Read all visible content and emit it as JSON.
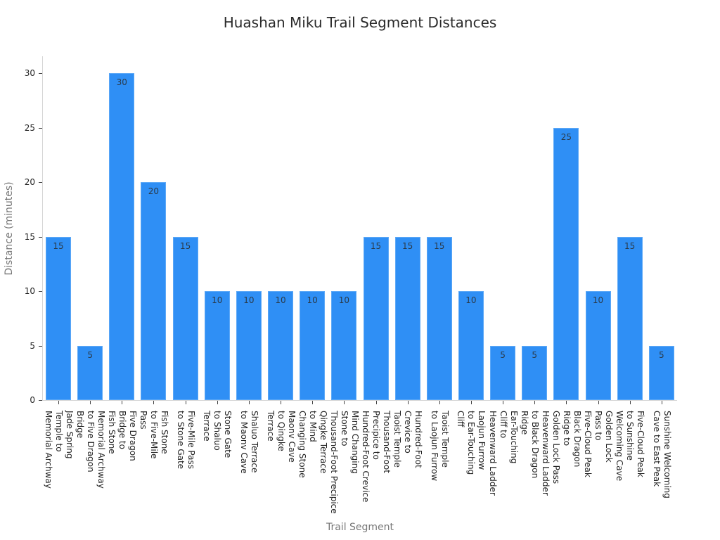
{
  "chart_data": {
    "type": "bar",
    "title": "Huashan Miku Trail Segment Distances",
    "xlabel": "Trail Segment",
    "ylabel": "Distance (minutes)",
    "ylim": [
      0,
      31.6
    ],
    "yticks": [
      0,
      5,
      10,
      15,
      20,
      25,
      30
    ],
    "grid": false,
    "legend": null,
    "bar_color": "#2f8ff5",
    "categories": [
      "Jade Spring Temple to Memorial Archway",
      "Memorial Archway to Five Dragon Bridge",
      "Five Dragon Bridge to Fish Stone",
      "Fish Stone to Five-Mile Pass",
      "Five-Mile Pass to Stone Gate",
      "Stone Gate to Shaluo Terrace",
      "Shaluo Terrace to Maonv Cave",
      "Maonv Cave to Qingke Terrace",
      "Qingke Terrace to Mind Changing Stone",
      "Mind Changing Stone to Thousand-Foot Precipice",
      "Thousand-Foot Precipice to Hundred-Foot Crevice",
      "Hundred-Foot Crevice to Taoist Temple",
      "Taoist Temple to Laojun Furrow",
      "Laojun Furrow to Ear-Touching Cliff",
      "Ear-Touching Cliff to Heavenward Ladder",
      "Heavenward Ladder to Black Dragon Ridge",
      "Black Dragon Ridge to Golden Lock Pass",
      "Golden Lock Pass to Five-Cloud Peak",
      "Five-Cloud Peak to Sunshine Welcoming Cave",
      "Sunshine Welcoming Cave to East Peak"
    ],
    "category_lines": [
      [
        "Jade Spring",
        "Temple to",
        "Memorial Archway"
      ],
      [
        "Memorial Archway",
        "to Five Dragon",
        "Bridge"
      ],
      [
        "Five Dragon",
        "Bridge to",
        "Fish Stone"
      ],
      [
        "Fish Stone",
        "to Five-Mile",
        "Pass"
      ],
      [
        "Five-Mile Pass",
        "to Stone Gate"
      ],
      [
        "Stone Gate",
        "to Shaluo",
        "Terrace"
      ],
      [
        "Shaluo Terrace",
        "to Maonv Cave"
      ],
      [
        "Maonv Cave",
        "to Qingke",
        "Terrace"
      ],
      [
        "Qingke Terrace",
        "to Mind",
        "Changing Stone"
      ],
      [
        "Mind Changing",
        "Stone to",
        "Thousand-Foot Precipice"
      ],
      [
        "Thousand-Foot",
        "Precipice to",
        "Hundred-Foot Crevice"
      ],
      [
        "Hundred-Foot",
        "Crevice to",
        "Taoist Temple"
      ],
      [
        "Taoist Temple",
        "to Laojun Furrow"
      ],
      [
        "Laojun Furrow",
        "to Ear-Touching",
        "Cliff"
      ],
      [
        "Ear-Touching",
        "Cliff to",
        "Heavenward Ladder"
      ],
      [
        "Heavenward Ladder",
        "to Black Dragon",
        "Ridge"
      ],
      [
        "Black Dragon",
        "Ridge to",
        "Golden Lock Pass"
      ],
      [
        "Golden Lock",
        "Pass to",
        "Five-Cloud Peak"
      ],
      [
        "Five-Cloud Peak",
        "to Sunshine",
        "Welcoming Cave"
      ],
      [
        "Sunshine Welcoming",
        "Cave to East Peak"
      ]
    ],
    "values": [
      15,
      5,
      30,
      20,
      15,
      10,
      10,
      10,
      10,
      10,
      15,
      15,
      15,
      10,
      5,
      5,
      25,
      10,
      15,
      5
    ]
  }
}
